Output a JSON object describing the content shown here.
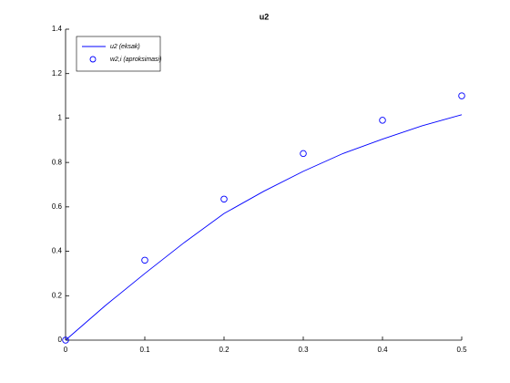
{
  "chart_data": {
    "type": "line",
    "title": "u2",
    "xlim": [
      0,
      0.5
    ],
    "xticks": [
      0,
      0.1,
      0.2,
      0.3,
      0.4,
      0.5
    ],
    "ylim": [
      0,
      1.4
    ],
    "yticks": [
      0,
      0.2,
      0.4,
      0.6,
      0.8,
      1,
      1.2,
      1.4
    ],
    "legend": "upper left",
    "series": [
      {
        "name": "u2 (eksak)",
        "color": "#0000ff",
        "marker": "none",
        "x": [
          0,
          0.05,
          0.1,
          0.15,
          0.2,
          0.25,
          0.3,
          0.35,
          0.4,
          0.45,
          0.5
        ],
        "values": [
          0,
          0.155,
          0.3,
          0.44,
          0.57,
          0.67,
          0.76,
          0.84,
          0.905,
          0.965,
          1.015
        ]
      },
      {
        "name": "w2,i (aproksimasi)",
        "color": "#0000ff",
        "marker": "circle",
        "x": [
          0,
          0.1,
          0.2,
          0.3,
          0.4,
          0.5
        ],
        "values": [
          0,
          0.36,
          0.635,
          0.84,
          0.99,
          1.1
        ]
      }
    ]
  }
}
